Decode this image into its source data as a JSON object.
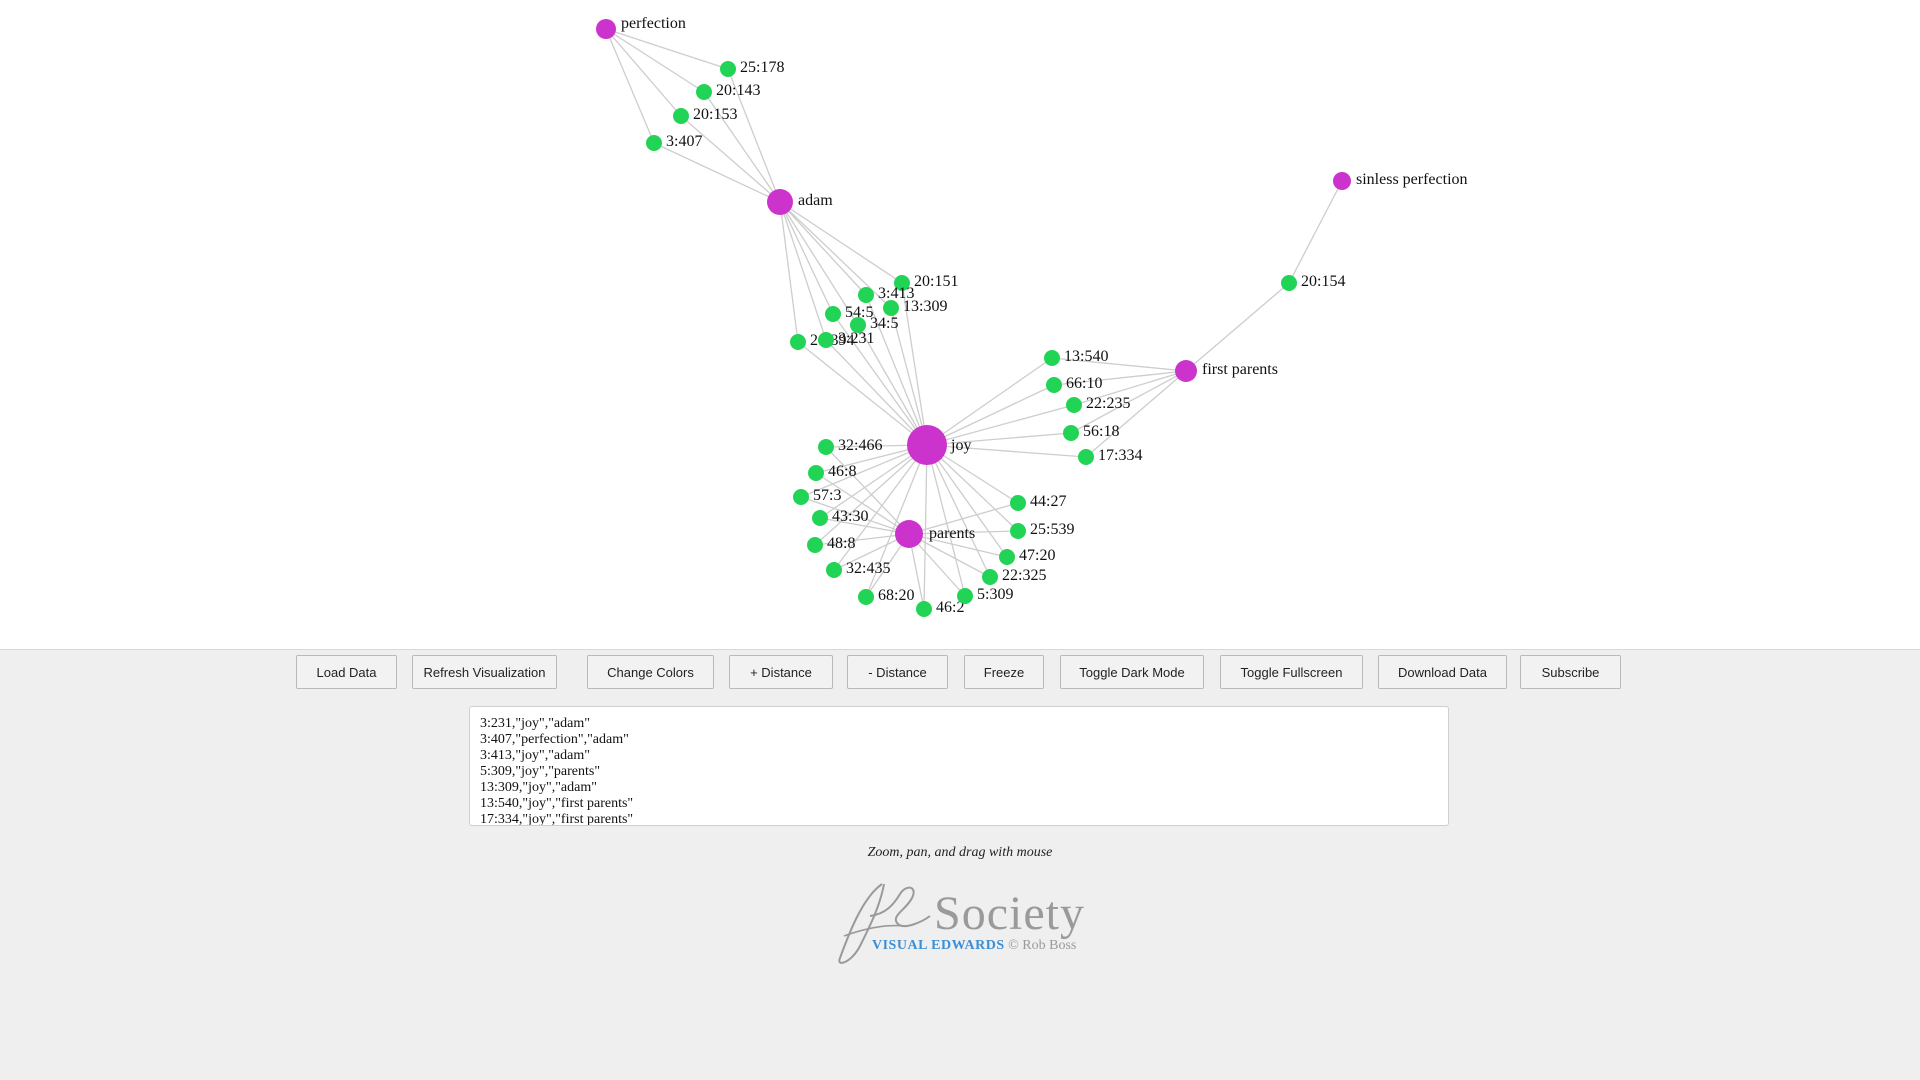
{
  "graph": {
    "colors": {
      "hub": "#cc33cc",
      "leaf": "#22d455",
      "edge": "#cdcdcd"
    },
    "nodes": [
      {
        "id": "perfection",
        "label": "perfection",
        "type": "hub"
      },
      {
        "id": "adam",
        "label": "adam",
        "type": "hub"
      },
      {
        "id": "joy",
        "label": "joy",
        "type": "hub"
      },
      {
        "id": "parents",
        "label": "parents",
        "type": "hub"
      },
      {
        "id": "first parents",
        "label": "first parents",
        "type": "hub"
      },
      {
        "id": "sinless perfection",
        "label": "sinless perfection",
        "type": "hub"
      },
      {
        "id": "25:178",
        "label": "25:178",
        "type": "leaf"
      },
      {
        "id": "20:143",
        "label": "20:143",
        "type": "leaf"
      },
      {
        "id": "20:153",
        "label": "20:153",
        "type": "leaf"
      },
      {
        "id": "3:407",
        "label": "3:407",
        "type": "leaf"
      },
      {
        "id": "20:151",
        "label": "20:151",
        "type": "leaf"
      },
      {
        "id": "3:413",
        "label": "3:413",
        "type": "leaf"
      },
      {
        "id": "13:309",
        "label": "13:309",
        "type": "leaf"
      },
      {
        "id": "54:5",
        "label": "54:5",
        "type": "leaf"
      },
      {
        "id": "34:5",
        "label": "34:5",
        "type": "leaf"
      },
      {
        "id": "20:394",
        "label": "20:394",
        "type": "leaf"
      },
      {
        "id": "3:231",
        "label": "3:231",
        "type": "leaf"
      },
      {
        "id": "20:154",
        "label": "20:154",
        "type": "leaf"
      },
      {
        "id": "13:540",
        "label": "13:540",
        "type": "leaf"
      },
      {
        "id": "66:10",
        "label": "66:10",
        "type": "leaf"
      },
      {
        "id": "22:235",
        "label": "22:235",
        "type": "leaf"
      },
      {
        "id": "56:18",
        "label": "56:18",
        "type": "leaf"
      },
      {
        "id": "17:334",
        "label": "17:334",
        "type": "leaf"
      },
      {
        "id": "32:466",
        "label": "32:466",
        "type": "leaf"
      },
      {
        "id": "46:8",
        "label": "46:8",
        "type": "leaf"
      },
      {
        "id": "57:3",
        "label": "57:3",
        "type": "leaf"
      },
      {
        "id": "43:30",
        "label": "43:30",
        "type": "leaf"
      },
      {
        "id": "48:8",
        "label": "48:8",
        "type": "leaf"
      },
      {
        "id": "32:435",
        "label": "32:435",
        "type": "leaf"
      },
      {
        "id": "68:20",
        "label": "68:20",
        "type": "leaf"
      },
      {
        "id": "46:2",
        "label": "46:2",
        "type": "leaf"
      },
      {
        "id": "5:309",
        "label": "5:309",
        "type": "leaf"
      },
      {
        "id": "22:325",
        "label": "22:325",
        "type": "leaf"
      },
      {
        "id": "47:20",
        "label": "47:20",
        "type": "leaf"
      },
      {
        "id": "25:539",
        "label": "25:539",
        "type": "leaf"
      },
      {
        "id": "44:27",
        "label": "44:27",
        "type": "leaf"
      }
    ],
    "edges": [
      [
        "25:178",
        "perfection"
      ],
      [
        "25:178",
        "adam"
      ],
      [
        "20:143",
        "perfection"
      ],
      [
        "20:143",
        "adam"
      ],
      [
        "20:153",
        "perfection"
      ],
      [
        "20:153",
        "adam"
      ],
      [
        "3:407",
        "perfection"
      ],
      [
        "3:407",
        "adam"
      ],
      [
        "20:151",
        "adam"
      ],
      [
        "20:151",
        "joy"
      ],
      [
        "3:413",
        "adam"
      ],
      [
        "3:413",
        "joy"
      ],
      [
        "13:309",
        "adam"
      ],
      [
        "13:309",
        "joy"
      ],
      [
        "54:5",
        "adam"
      ],
      [
        "54:5",
        "joy"
      ],
      [
        "34:5",
        "adam"
      ],
      [
        "34:5",
        "joy"
      ],
      [
        "20:394",
        "adam"
      ],
      [
        "20:394",
        "joy"
      ],
      [
        "3:231",
        "adam"
      ],
      [
        "3:231",
        "joy"
      ],
      [
        "20:154",
        "first parents"
      ],
      [
        "20:154",
        "sinless perfection"
      ],
      [
        "13:540",
        "joy"
      ],
      [
        "13:540",
        "first parents"
      ],
      [
        "66:10",
        "joy"
      ],
      [
        "66:10",
        "first parents"
      ],
      [
        "22:235",
        "joy"
      ],
      [
        "22:235",
        "first parents"
      ],
      [
        "56:18",
        "joy"
      ],
      [
        "56:18",
        "first parents"
      ],
      [
        "17:334",
        "joy"
      ],
      [
        "17:334",
        "first parents"
      ],
      [
        "32:466",
        "joy"
      ],
      [
        "32:466",
        "parents"
      ],
      [
        "46:8",
        "joy"
      ],
      [
        "46:8",
        "parents"
      ],
      [
        "57:3",
        "joy"
      ],
      [
        "57:3",
        "parents"
      ],
      [
        "43:30",
        "joy"
      ],
      [
        "43:30",
        "parents"
      ],
      [
        "48:8",
        "joy"
      ],
      [
        "48:8",
        "parents"
      ],
      [
        "32:435",
        "joy"
      ],
      [
        "32:435",
        "parents"
      ],
      [
        "68:20",
        "joy"
      ],
      [
        "68:20",
        "parents"
      ],
      [
        "46:2",
        "joy"
      ],
      [
        "46:2",
        "parents"
      ],
      [
        "5:309",
        "joy"
      ],
      [
        "5:309",
        "parents"
      ],
      [
        "22:325",
        "joy"
      ],
      [
        "22:325",
        "parents"
      ],
      [
        "47:20",
        "joy"
      ],
      [
        "47:20",
        "parents"
      ],
      [
        "25:539",
        "joy"
      ],
      [
        "25:539",
        "parents"
      ],
      [
        "44:27",
        "joy"
      ],
      [
        "44:27",
        "parents"
      ]
    ]
  },
  "toolbar": {
    "buttons": [
      {
        "id": "load-data",
        "label": "Load Data"
      },
      {
        "id": "refresh-visualization",
        "label": "Refresh Visualization"
      },
      {
        "id": "change-colors",
        "label": "Change Colors"
      },
      {
        "id": "increase-distance",
        "label": "+ Distance"
      },
      {
        "id": "decrease-distance",
        "label": "- Distance"
      },
      {
        "id": "freeze",
        "label": "Freeze"
      },
      {
        "id": "toggle-dark-mode",
        "label": "Toggle Dark Mode"
      },
      {
        "id": "toggle-fullscreen",
        "label": "Toggle Fullscreen"
      },
      {
        "id": "download-data",
        "label": "Download Data"
      },
      {
        "id": "subscribe",
        "label": "Subscribe"
      }
    ]
  },
  "data_input": {
    "lines": [
      "3:231,\"joy\",\"adam\"",
      "3:407,\"perfection\",\"adam\"",
      "3:413,\"joy\",\"adam\"",
      "5:309,\"joy\",\"parents\"",
      "13:309,\"joy\",\"adam\"",
      "13:540,\"joy\",\"first parents\"",
      "17:334,\"joy\",\"first parents\""
    ]
  },
  "hint": "Zoom, pan, and drag with mouse",
  "logo": {
    "society": "Society",
    "visual_edwards": "VISUAL EDWARDS",
    "copyright": "© Rob Boss"
  }
}
